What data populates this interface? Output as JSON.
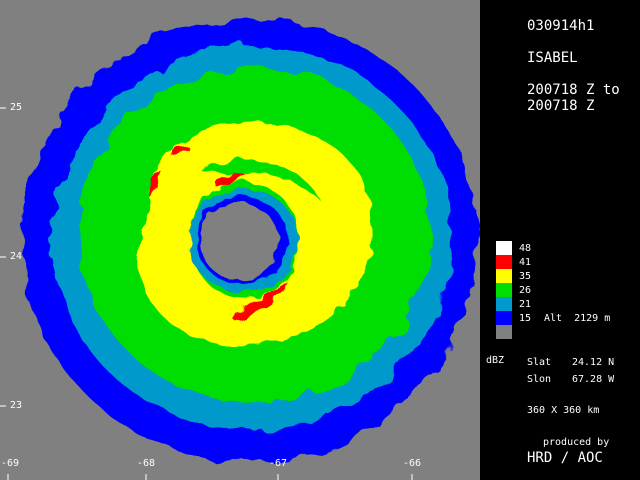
{
  "header": {
    "case_id": "030914h1",
    "storm": "ISABEL",
    "time_from": "200718 Z to",
    "time_to": "200718 Z"
  },
  "legend": {
    "unit": "dBZ",
    "colors": {
      "c48": "#ffffff",
      "c41": "#ff0000",
      "c35": "#ffff00",
      "c26": "#00dd00",
      "c21": "#0099cc",
      "c15": "#0000ff",
      "none": "#808080"
    },
    "levels": [
      "48",
      "41",
      "35",
      "26",
      "21",
      "15"
    ]
  },
  "info": {
    "altitude": "Alt  2129 m",
    "slat_label": "Slat",
    "slat_value": "24.12 N",
    "slon_label": "Slon",
    "slon_value": "67.28 W",
    "domain": "360 X 360 km"
  },
  "credit": {
    "line1": "produced by",
    "line2": "HRD / AOC"
  },
  "axes": {
    "lat_ticks": [
      "25",
      "24",
      "23"
    ],
    "lon_ticks": [
      "-69",
      "-68",
      "-67",
      "-66"
    ]
  }
}
